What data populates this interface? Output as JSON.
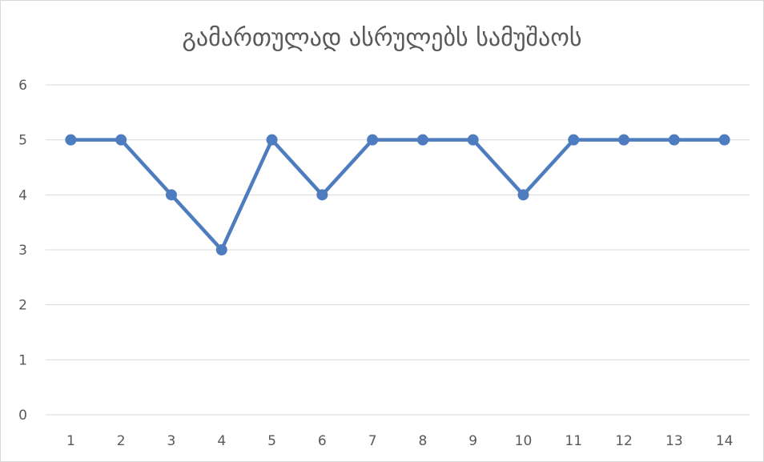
{
  "chart_data": {
    "type": "line",
    "title": "გამართულად ასრულებს სამუშაოს",
    "xlabel": "",
    "ylabel": "",
    "categories": [
      "1",
      "2",
      "3",
      "4",
      "5",
      "6",
      "7",
      "8",
      "9",
      "10",
      "11",
      "12",
      "13",
      "14"
    ],
    "series": [
      {
        "values": [
          5,
          5,
          4,
          3,
          5,
          4,
          5,
          5,
          5,
          4,
          5,
          5,
          5,
          5
        ]
      }
    ],
    "ylim": [
      0,
      6
    ],
    "yticks": [
      "0",
      "1",
      "2",
      "3",
      "4",
      "5",
      "6"
    ],
    "grid": true,
    "legend": "none",
    "colors": {
      "line": "#4e7dbf",
      "grid": "#d9d9d9",
      "text": "#595959"
    }
  }
}
